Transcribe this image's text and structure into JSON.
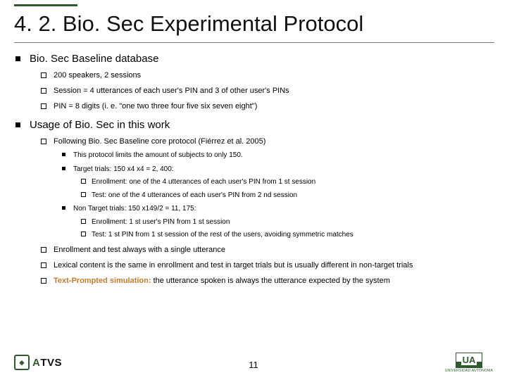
{
  "title": "4. 2. Bio. Sec Experimental Protocol",
  "sections": [
    {
      "heading": "Bio. Sec Baseline database",
      "items": [
        {
          "text": "200 speakers, 2 sessions"
        },
        {
          "text": "Session = 4 utterances of each user's PIN and 3 of other user's PINs"
        },
        {
          "text": "PIN = 8 digits (i. e. \"one two three four five six seven eight\")"
        }
      ]
    },
    {
      "heading": "Usage of Bio. Sec in this work",
      "items": [
        {
          "text": "Following Bio. Sec Baseline core protocol (Fiérrez et al. 2005)",
          "sub": [
            {
              "text": "This protocol limits the amount of subjects to only 150."
            },
            {
              "text": "Target trials: 150 x4 x4 = 2, 400:",
              "sub": [
                {
                  "text": "Enrollment: one of the 4 utterances of each user's PIN from 1 st session"
                },
                {
                  "text": "Test: one of the 4 utterances of each user's PIN from 2 nd session"
                }
              ]
            },
            {
              "text": "Non Target trials: 150 x149/2 = 11, 175:",
              "sub": [
                {
                  "text": "Enrollment: 1 st user's PIN from 1 st session"
                },
                {
                  "text": "Test: 1 st PIN from 1 st session of the rest of the users, avoiding symmetric matches"
                }
              ]
            }
          ]
        },
        {
          "text": "Enrollment and test always with a single utterance"
        },
        {
          "text": "Lexical content is the same in enrollment and test in target trials but is usually different in non-target trials"
        },
        {
          "highlight": "Text-Prompted simulation:",
          "text": " the utterance spoken is always the utterance expected by the system"
        }
      ]
    }
  ],
  "footer": {
    "left_seal": "◆",
    "atvs_a": "A",
    "atvs_rest": "TVS",
    "page": "11",
    "ua": "UA",
    "madrid": "UNIVERSIDAD AUTONOMA"
  },
  "colors": {
    "accent_green": "#2e5a2e",
    "highlight": "#c97a2a",
    "divider": "#777"
  }
}
